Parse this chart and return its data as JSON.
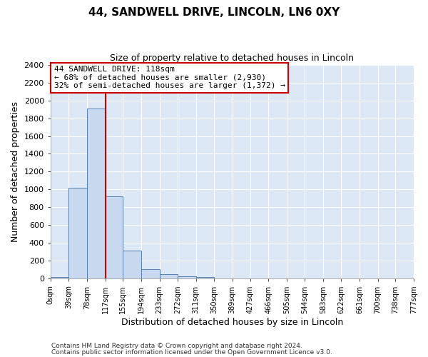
{
  "title": "44, SANDWELL DRIVE, LINCOLN, LN6 0XY",
  "subtitle": "Size of property relative to detached houses in Lincoln",
  "xlabel": "Distribution of detached houses by size in Lincoln",
  "ylabel": "Number of detached properties",
  "bin_edges": [
    0,
    39,
    78,
    117,
    155,
    194,
    233,
    272,
    311,
    350,
    389,
    427,
    466,
    505,
    544,
    583,
    622,
    661,
    700,
    738,
    777
  ],
  "bin_labels": [
    "0sqm",
    "39sqm",
    "78sqm",
    "117sqm",
    "155sqm",
    "194sqm",
    "233sqm",
    "272sqm",
    "311sqm",
    "350sqm",
    "389sqm",
    "427sqm",
    "466sqm",
    "505sqm",
    "544sqm",
    "583sqm",
    "622sqm",
    "661sqm",
    "700sqm",
    "738sqm",
    "777sqm"
  ],
  "bar_heights": [
    20,
    1020,
    1910,
    920,
    315,
    105,
    50,
    30,
    20,
    0,
    0,
    0,
    0,
    0,
    0,
    0,
    0,
    0,
    0,
    0
  ],
  "bar_color": "#c8d8ee",
  "bar_edge_color": "#5580b0",
  "property_line_x": 118,
  "property_line_color": "#cc0000",
  "ylim": [
    0,
    2400
  ],
  "yticks": [
    0,
    200,
    400,
    600,
    800,
    1000,
    1200,
    1400,
    1600,
    1800,
    2000,
    2200,
    2400
  ],
  "annotation_title": "44 SANDWELL DRIVE: 118sqm",
  "annotation_line1": "← 68% of detached houses are smaller (2,930)",
  "annotation_line2": "32% of semi-detached houses are larger (1,372) →",
  "annotation_box_color": "#ffffff",
  "annotation_box_edge": "#cc0000",
  "footer1": "Contains HM Land Registry data © Crown copyright and database right 2024.",
  "footer2": "Contains public sector information licensed under the Open Government Licence v3.0.",
  "background_color": "#dce8f5",
  "grid_color": "#ffffff",
  "fig_background": "#ffffff"
}
